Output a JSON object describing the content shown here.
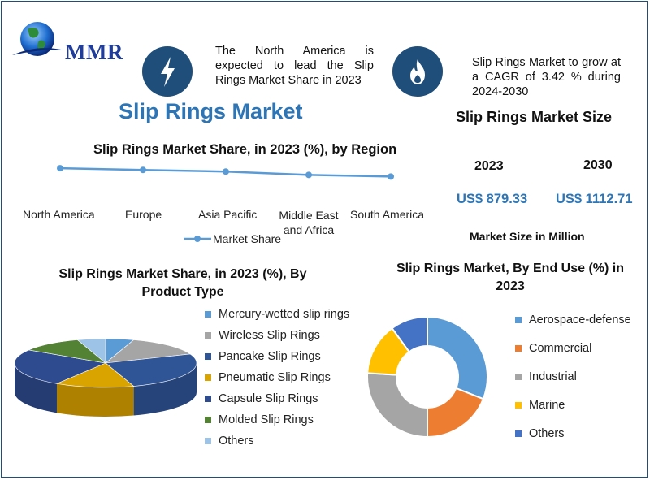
{
  "logo": {
    "text": "MMR"
  },
  "callout_left": {
    "text": "The North America is expected to lead the Slip Rings Market Share in 2023"
  },
  "callout_right": {
    "text": "Slip Rings Market to grow at a CAGR of 3.42 % during 2024-2030"
  },
  "main_title": "Slip Rings Market",
  "market_size": {
    "title": "Slip Rings Market Size",
    "years": [
      "2023",
      "2030"
    ],
    "values": [
      "US$ 879.33",
      "US$ 1112.71"
    ],
    "caption": "Market Size in Million"
  },
  "colors": {
    "accent": "#2e75b6",
    "dark_blue": "#1e4e79",
    "line": "#5b9bd5"
  },
  "chart_data": [
    {
      "type": "line",
      "title": "Slip Rings Market Share, in 2023 (%), by Region",
      "categories": [
        "North America",
        "Europe",
        "Asia Pacific",
        "Middle East and Africa",
        "South America"
      ],
      "series": [
        {
          "name": "Market Share",
          "values": [
            38,
            36,
            34,
            30,
            28
          ]
        }
      ],
      "legend": "bottom",
      "ylim": [
        0,
        45
      ],
      "grid": false
    },
    {
      "type": "pie",
      "title": "Slip Rings Market Share, in 2023 (%), By Product Type",
      "labels": [
        "Mercury-wetted slip rings",
        "Wireless Slip Rings",
        "Pancake Slip Rings",
        "Pneumatic Slip Rings",
        "Capsule Slip Rings",
        "Molded Slip Rings",
        "Others"
      ],
      "values": [
        5,
        14,
        26,
        14,
        25,
        11,
        5
      ],
      "colors": [
        "#5b9bd5",
        "#a5a5a5",
        "#2f5597",
        "#d9a300",
        "#2e4b8f",
        "#548235",
        "#9dc3e6"
      ],
      "legend": "right"
    },
    {
      "type": "pie",
      "title": "Slip Rings Market, By End Use (%) in 2023",
      "labels": [
        "Aerospace-defense",
        "Commercial",
        "Industrial",
        "Marine",
        "Others"
      ],
      "values": [
        31,
        19,
        26,
        14,
        10
      ],
      "colors": [
        "#5b9bd5",
        "#ed7d31",
        "#a5a5a5",
        "#ffc000",
        "#4472c4"
      ],
      "legend": "right"
    }
  ]
}
